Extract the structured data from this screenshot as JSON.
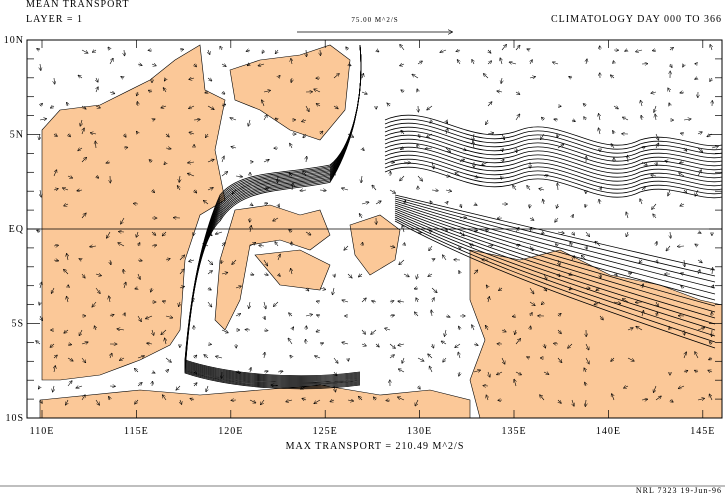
{
  "header": {
    "title": "MEAN TRANSPORT",
    "layer": "LAYER = 1",
    "scale": "75.00 M^2/S",
    "period": "CLIMATOLOGY DAY 000 TO 366"
  },
  "axes": {
    "lat_labels": [
      "10N",
      "5N",
      "EQ",
      "5S",
      "10S"
    ],
    "lon_labels": [
      "110E",
      "115E",
      "120E",
      "125E",
      "130E",
      "135E",
      "140E",
      "145E"
    ]
  },
  "footer": {
    "max_transport": "MAX TRANSPORT = 210.49 M^2/S",
    "credit": "NRL 7323  19-Jun-96"
  }
}
